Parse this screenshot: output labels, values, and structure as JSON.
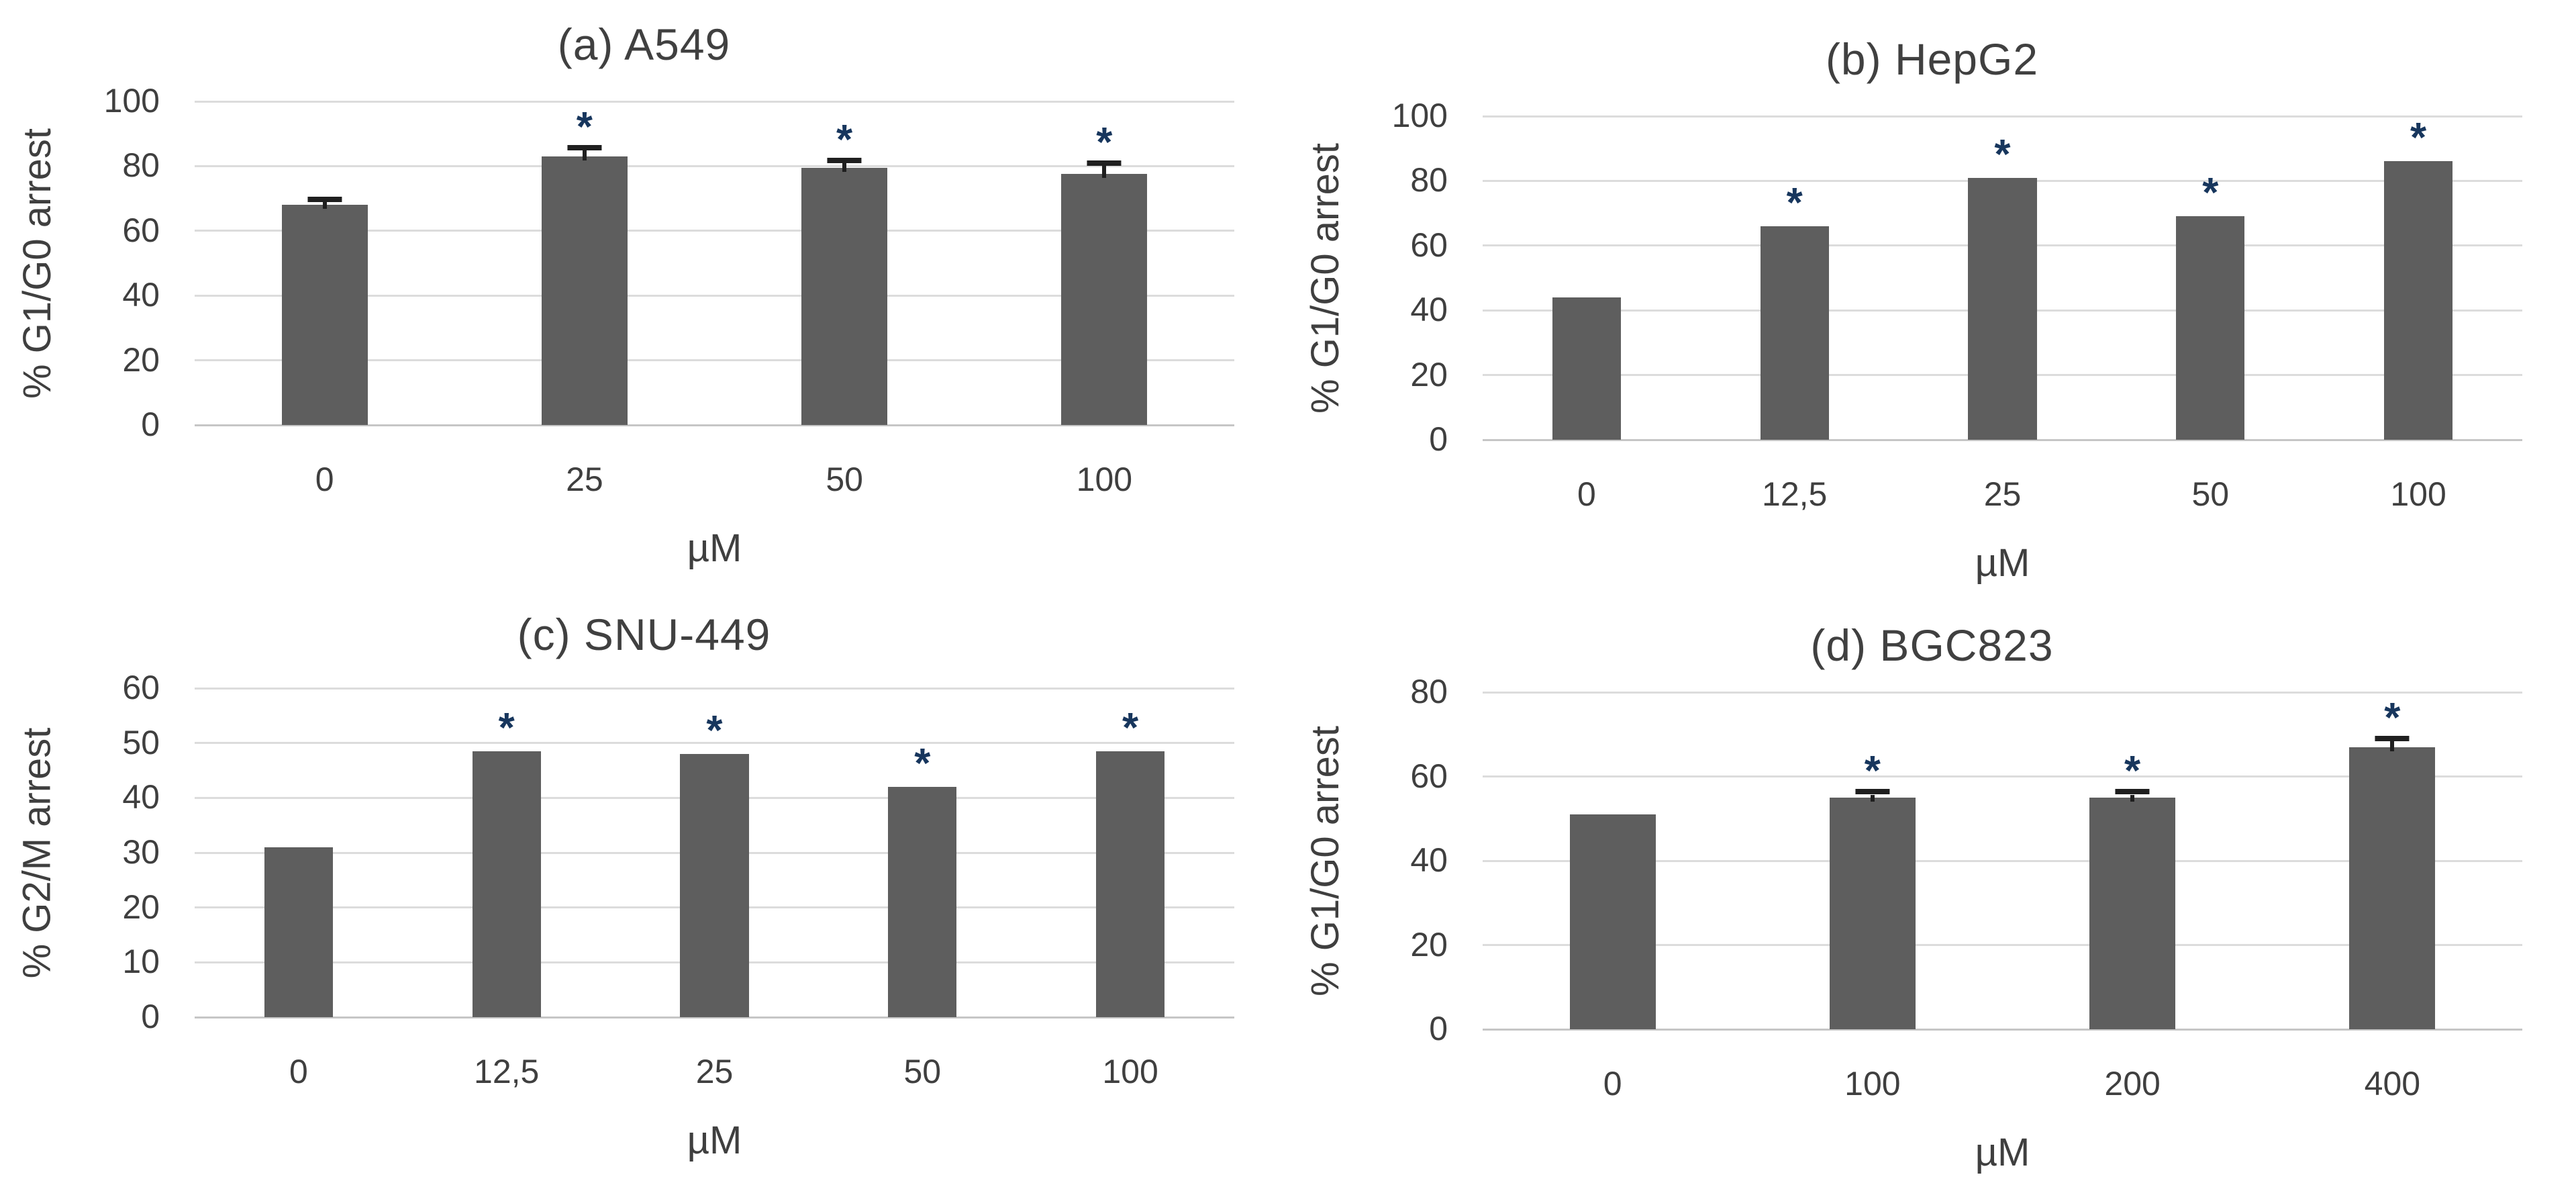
{
  "figure": {
    "description": "Four-panel bar chart figure of cell cycle arrest percentages versus drug concentration in four cell lines",
    "background": "#ffffff"
  },
  "colors": {
    "bar_fill": "#5e5e5e",
    "gridline": "#dcdcdc",
    "axis_line": "#c6c6c6",
    "text": "#3f3f3f",
    "error_bar": "#1f1f1f",
    "asterisk": "#17365d"
  },
  "chart_data": [
    {
      "panel": "a",
      "type": "bar",
      "title": "(a) A549",
      "ylabel": "% G1/G0 arrest",
      "xlabel": "µM",
      "ylim": [
        0,
        100
      ],
      "yticks": [
        0,
        20,
        40,
        60,
        80,
        100
      ],
      "grid": true,
      "legend": false,
      "categories": [
        "0",
        "25",
        "50",
        "100"
      ],
      "values": [
        68,
        83,
        79.5,
        77.5
      ],
      "errors": [
        0.8,
        1.8,
        1.5,
        2.6
      ],
      "significant": [
        false,
        true,
        true,
        true
      ],
      "significance_marker": "*"
    },
    {
      "panel": "b",
      "type": "bar",
      "title": "(b) HepG2",
      "ylabel": "% G1/G0 arrest",
      "xlabel": "µM",
      "ylim": [
        0,
        100
      ],
      "yticks": [
        0,
        20,
        40,
        60,
        80,
        100
      ],
      "grid": true,
      "legend": false,
      "categories": [
        "0",
        "12,5",
        "25",
        "50",
        "100"
      ],
      "values": [
        44,
        66,
        81,
        69,
        86
      ],
      "errors": [
        0,
        0,
        0,
        0,
        0
      ],
      "significant": [
        false,
        true,
        true,
        true,
        true
      ],
      "significance_marker": "*"
    },
    {
      "panel": "c",
      "type": "bar",
      "title": "(c) SNU-449",
      "ylabel": "% G2/M arrest",
      "xlabel": "µM",
      "ylim": [
        0,
        60
      ],
      "yticks": [
        0,
        10,
        20,
        30,
        40,
        50,
        60
      ],
      "grid": true,
      "legend": false,
      "categories": [
        "0",
        "12,5",
        "25",
        "50",
        "100"
      ],
      "values": [
        31,
        48.5,
        48,
        42,
        48.5
      ],
      "errors": [
        0,
        0,
        0,
        0,
        0
      ],
      "significant": [
        false,
        true,
        true,
        true,
        true
      ],
      "significance_marker": "*"
    },
    {
      "panel": "d",
      "type": "bar",
      "title": "(d) BGC823",
      "ylabel": "% G1/G0 arrest",
      "xlabel": "µM",
      "ylim": [
        0,
        80
      ],
      "yticks": [
        0,
        20,
        40,
        60,
        80
      ],
      "grid": true,
      "legend": false,
      "categories": [
        "0",
        "100",
        "200",
        "400"
      ],
      "values": [
        51,
        55,
        55,
        67
      ],
      "errors": [
        0,
        0.7,
        0.7,
        1.4
      ],
      "significant": [
        false,
        true,
        true,
        true
      ],
      "significance_marker": "*"
    }
  ]
}
